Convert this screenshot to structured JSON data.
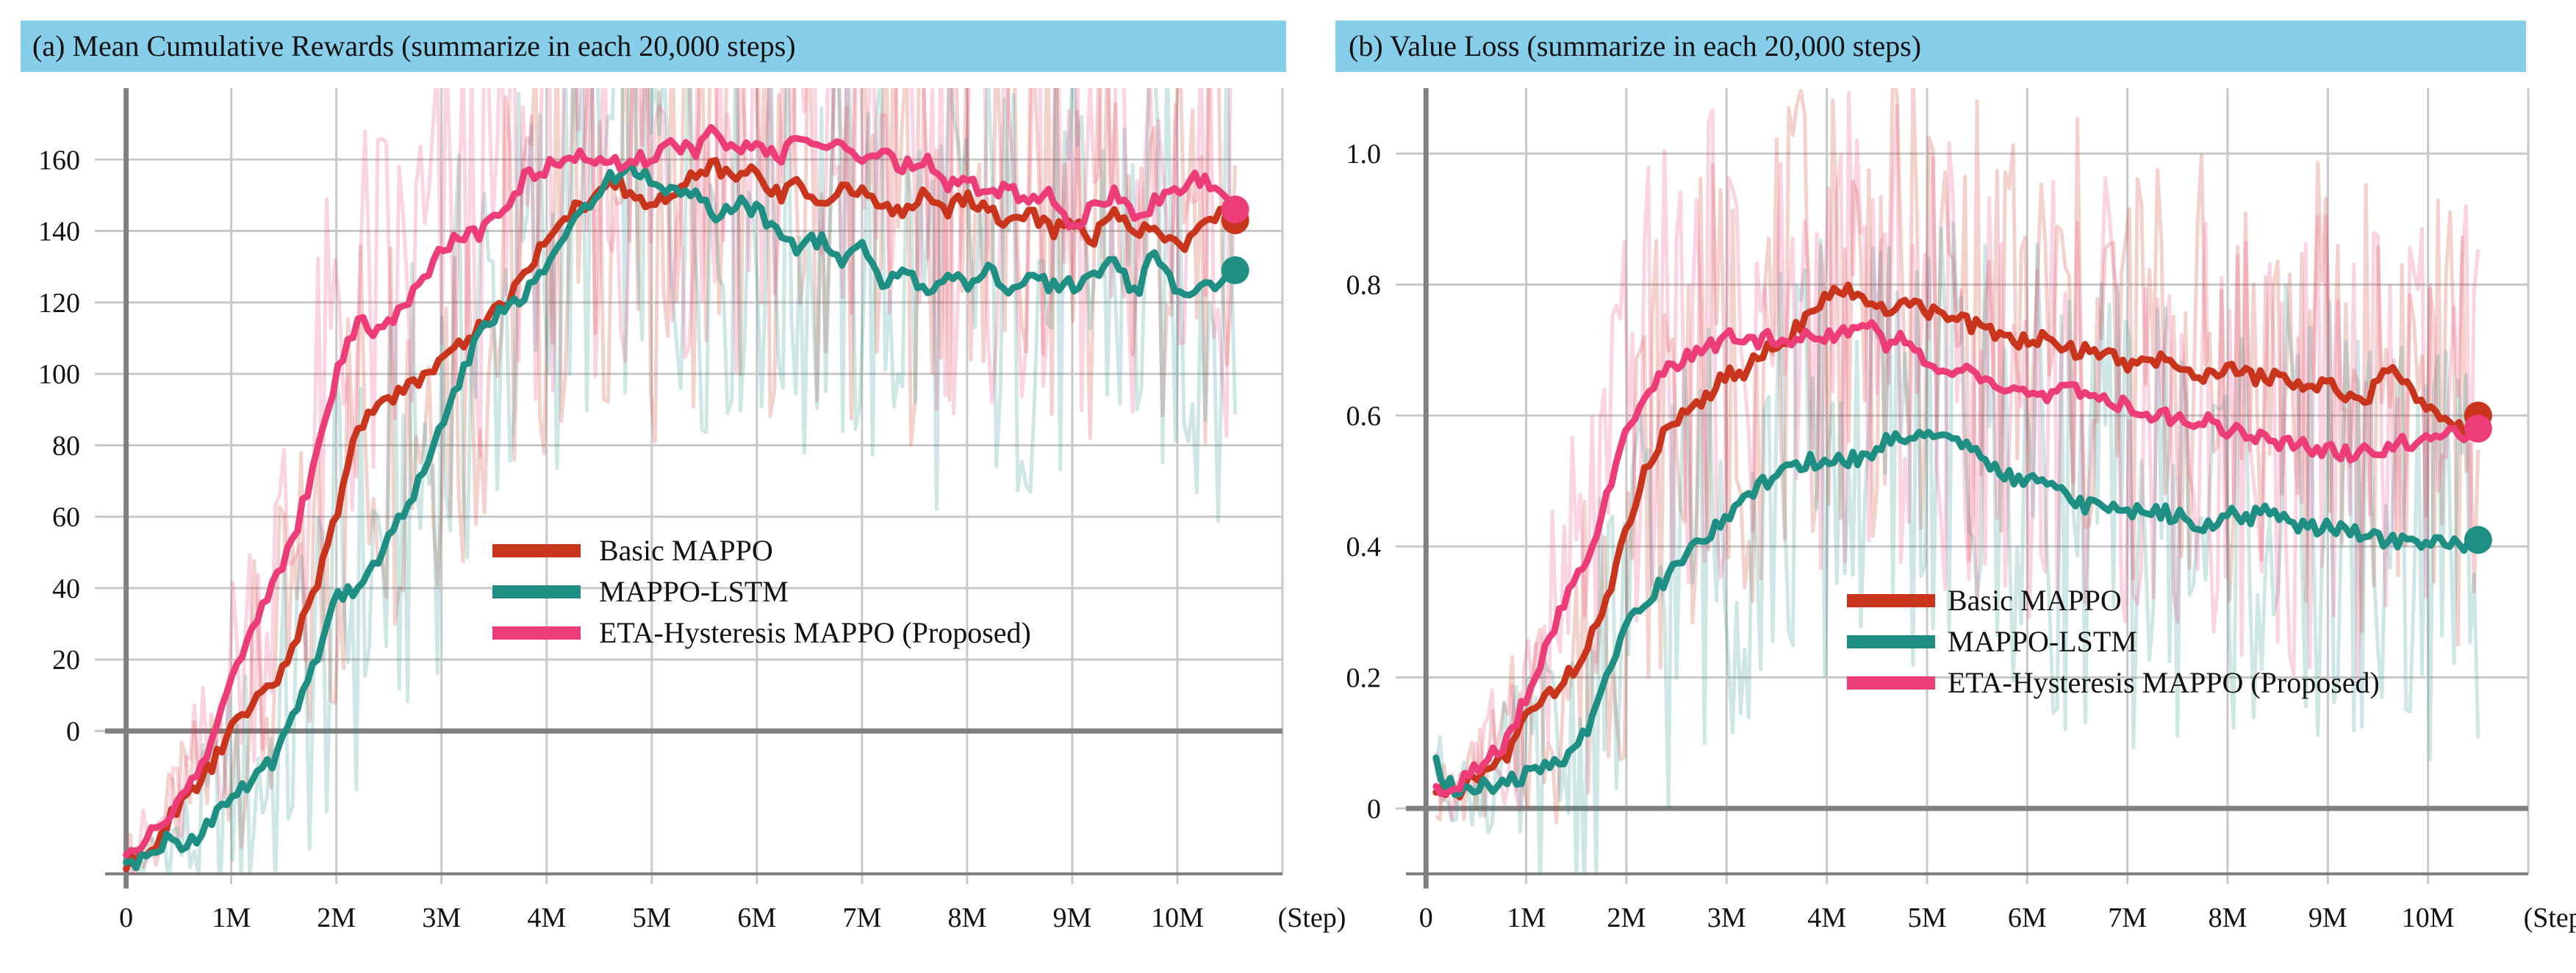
{
  "colors": {
    "title_bar": "#87ceeb",
    "grid": "#c8c8c8",
    "axis": "#808080",
    "basic_mappo": "#c8341c",
    "mappo_lstm": "#1f8f84",
    "eta_hysteresis": "#ec3d78"
  },
  "chart_data": [
    {
      "type": "line",
      "title": "(a) Mean Cumulative Rewards (summarize in each 20,000 steps)",
      "xlabel": "(Step)",
      "ylabel": "",
      "xlim": [
        -0.2,
        11.0
      ],
      "ylim": [
        -40,
        180
      ],
      "xticks": [
        0,
        1,
        2,
        3,
        4,
        5,
        6,
        7,
        8,
        9,
        10
      ],
      "xtick_labels": [
        "0",
        "1M",
        "2M",
        "3M",
        "4M",
        "5M",
        "6M",
        "7M",
        "8M",
        "9M",
        "10M"
      ],
      "yticks": [
        0,
        20,
        40,
        60,
        80,
        100,
        120,
        140,
        160
      ],
      "ytick_labels": [
        "0",
        "20",
        "40",
        "60",
        "80",
        "100",
        "120",
        "140",
        "160"
      ],
      "grid": true,
      "legend_position": "center",
      "series": [
        {
          "name": "Basic MAPPO",
          "color": "#c8341c",
          "x": [
            0,
            0.2,
            0.4,
            0.6,
            0.8,
            1.0,
            1.2,
            1.4,
            1.6,
            1.8,
            2.0,
            2.2,
            2.4,
            2.6,
            2.8,
            3.0,
            3.2,
            3.4,
            3.6,
            3.8,
            4.0,
            4.2,
            4.4,
            4.6,
            4.8,
            5.0,
            5.2,
            5.4,
            5.6,
            5.8,
            6.0,
            6.2,
            6.4,
            6.6,
            6.8,
            7.0,
            7.2,
            7.4,
            7.6,
            7.8,
            8.0,
            8.2,
            8.4,
            8.6,
            8.8,
            9.0,
            9.2,
            9.4,
            9.6,
            9.8,
            10.0,
            10.2,
            10.4,
            10.55
          ],
          "y": [
            -38,
            -35,
            -25,
            -18,
            -10,
            0,
            8,
            12,
            25,
            40,
            60,
            85,
            92,
            95,
            98,
            105,
            108,
            115,
            120,
            128,
            138,
            145,
            148,
            155,
            150,
            147,
            150,
            155,
            158,
            155,
            157,
            150,
            153,
            148,
            152,
            150,
            148,
            145,
            150,
            146,
            150,
            146,
            142,
            145,
            140,
            143,
            138,
            145,
            140,
            142,
            135,
            140,
            145,
            143
          ]
        },
        {
          "name": "MAPPO-LSTM",
          "color": "#1f8f84",
          "x": [
            0,
            0.2,
            0.4,
            0.6,
            0.8,
            1.0,
            1.2,
            1.4,
            1.6,
            1.8,
            2.0,
            2.2,
            2.4,
            2.6,
            2.8,
            3.0,
            3.2,
            3.4,
            3.6,
            3.8,
            4.0,
            4.2,
            4.4,
            4.6,
            4.8,
            5.0,
            5.2,
            5.4,
            5.6,
            5.8,
            6.0,
            6.2,
            6.4,
            6.6,
            6.8,
            7.0,
            7.2,
            7.4,
            7.6,
            7.8,
            8.0,
            8.2,
            8.4,
            8.6,
            8.8,
            9.0,
            9.2,
            9.4,
            9.6,
            9.8,
            10.0,
            10.2,
            10.4,
            10.55
          ],
          "y": [
            -38,
            -36,
            -30,
            -32,
            -25,
            -18,
            -15,
            -8,
            5,
            20,
            38,
            40,
            48,
            60,
            70,
            85,
            100,
            115,
            118,
            122,
            130,
            140,
            148,
            155,
            158,
            155,
            150,
            152,
            145,
            148,
            146,
            140,
            135,
            138,
            132,
            135,
            125,
            130,
            122,
            128,
            125,
            130,
            122,
            127,
            125,
            125,
            128,
            132,
            122,
            135,
            122,
            124,
            125,
            129
          ]
        },
        {
          "name": "ETA-Hysteresis MAPPO (Proposed)",
          "color": "#ec3d78",
          "x": [
            0,
            0.2,
            0.4,
            0.6,
            0.8,
            1.0,
            1.2,
            1.4,
            1.6,
            1.8,
            2.0,
            2.2,
            2.4,
            2.6,
            2.8,
            3.0,
            3.2,
            3.4,
            3.6,
            3.8,
            4.0,
            4.2,
            4.4,
            4.6,
            4.8,
            5.0,
            5.2,
            5.4,
            5.6,
            5.8,
            6.0,
            6.2,
            6.4,
            6.6,
            6.8,
            7.0,
            7.2,
            7.4,
            7.6,
            7.8,
            8.0,
            8.2,
            8.4,
            8.6,
            8.8,
            9.0,
            9.2,
            9.4,
            9.6,
            9.8,
            10.0,
            10.2,
            10.4,
            10.55
          ],
          "y": [
            -35,
            -30,
            -25,
            -15,
            -5,
            15,
            30,
            40,
            55,
            75,
            100,
            115,
            112,
            118,
            125,
            135,
            138,
            140,
            145,
            155,
            158,
            160,
            162,
            158,
            160,
            160,
            165,
            162,
            168,
            162,
            165,
            160,
            168,
            162,
            166,
            158,
            162,
            158,
            160,
            152,
            155,
            150,
            152,
            148,
            150,
            140,
            148,
            150,
            145,
            148,
            150,
            155,
            150,
            146
          ]
        }
      ]
    },
    {
      "type": "line",
      "title": "(b) Value Loss (summarize in each 20,000 steps)",
      "xlabel": "(Step)",
      "ylabel": "",
      "xlim": [
        -0.2,
        11.0
      ],
      "ylim": [
        -0.1,
        1.1
      ],
      "xticks": [
        0,
        1,
        2,
        3,
        4,
        5,
        6,
        7,
        8,
        9,
        10
      ],
      "xtick_labels": [
        "0",
        "1M",
        "2M",
        "3M",
        "4M",
        "5M",
        "6M",
        "7M",
        "8M",
        "9M",
        "10M"
      ],
      "yticks": [
        0,
        0.2,
        0.4,
        0.6,
        0.8,
        1.0
      ],
      "ytick_labels": [
        "0",
        "0.2",
        "0.4",
        "0.6",
        "0.8",
        "1.0"
      ],
      "grid": true,
      "legend_position": "center-right",
      "series": [
        {
          "name": "Basic MAPPO",
          "color": "#c8341c",
          "x": [
            0.1,
            0.2,
            0.3,
            0.5,
            0.8,
            1.0,
            1.2,
            1.4,
            1.6,
            1.8,
            2.0,
            2.2,
            2.4,
            2.6,
            2.8,
            3.0,
            3.2,
            3.4,
            3.6,
            3.8,
            4.0,
            4.2,
            4.4,
            4.6,
            4.8,
            5.0,
            5.2,
            5.4,
            5.6,
            5.8,
            6.0,
            6.2,
            6.4,
            6.6,
            6.8,
            7.0,
            7.2,
            7.4,
            7.6,
            7.8,
            8.0,
            8.2,
            8.4,
            8.6,
            8.8,
            9.0,
            9.2,
            9.4,
            9.6,
            9.8,
            10.0,
            10.2,
            10.4,
            10.5
          ],
          "y": [
            0.03,
            0.02,
            0.02,
            0.05,
            0.08,
            0.14,
            0.17,
            0.2,
            0.24,
            0.32,
            0.42,
            0.52,
            0.58,
            0.61,
            0.63,
            0.66,
            0.67,
            0.7,
            0.72,
            0.75,
            0.78,
            0.79,
            0.77,
            0.76,
            0.78,
            0.76,
            0.75,
            0.74,
            0.73,
            0.72,
            0.71,
            0.72,
            0.7,
            0.7,
            0.69,
            0.68,
            0.69,
            0.68,
            0.67,
            0.66,
            0.67,
            0.66,
            0.66,
            0.65,
            0.64,
            0.65,
            0.63,
            0.63,
            0.67,
            0.64,
            0.61,
            0.59,
            0.58,
            0.6
          ]
        },
        {
          "name": "MAPPO-LSTM",
          "color": "#1f8f84",
          "x": [
            0.1,
            0.2,
            0.3,
            0.5,
            0.8,
            1.0,
            1.2,
            1.4,
            1.6,
            1.8,
            2.0,
            2.2,
            2.4,
            2.6,
            2.8,
            3.0,
            3.2,
            3.4,
            3.6,
            3.8,
            4.0,
            4.2,
            4.4,
            4.6,
            4.8,
            5.0,
            5.2,
            5.4,
            5.6,
            5.8,
            6.0,
            6.2,
            6.4,
            6.6,
            6.8,
            7.0,
            7.2,
            7.4,
            7.6,
            7.8,
            8.0,
            8.2,
            8.4,
            8.6,
            8.8,
            9.0,
            9.2,
            9.4,
            9.6,
            9.8,
            10.0,
            10.2,
            10.4,
            10.5
          ],
          "y": [
            0.07,
            0.04,
            0.03,
            0.03,
            0.04,
            0.05,
            0.06,
            0.08,
            0.12,
            0.2,
            0.29,
            0.32,
            0.35,
            0.39,
            0.42,
            0.44,
            0.47,
            0.5,
            0.52,
            0.53,
            0.53,
            0.53,
            0.54,
            0.56,
            0.57,
            0.58,
            0.56,
            0.55,
            0.53,
            0.51,
            0.5,
            0.5,
            0.48,
            0.46,
            0.46,
            0.45,
            0.46,
            0.45,
            0.44,
            0.43,
            0.45,
            0.44,
            0.46,
            0.44,
            0.43,
            0.43,
            0.42,
            0.42,
            0.41,
            0.41,
            0.4,
            0.41,
            0.4,
            0.41
          ]
        },
        {
          "name": "ETA-Hysteresis MAPPO (Proposed)",
          "color": "#ec3d78",
          "x": [
            0.1,
            0.2,
            0.3,
            0.5,
            0.8,
            1.0,
            1.2,
            1.4,
            1.6,
            1.8,
            2.0,
            2.2,
            2.4,
            2.6,
            2.8,
            3.0,
            3.2,
            3.4,
            3.6,
            3.8,
            4.0,
            4.2,
            4.4,
            4.6,
            4.8,
            5.0,
            5.2,
            5.4,
            5.6,
            5.8,
            6.0,
            6.2,
            6.4,
            6.6,
            6.8,
            7.0,
            7.2,
            7.4,
            7.6,
            7.8,
            8.0,
            8.2,
            8.4,
            8.6,
            8.8,
            9.0,
            9.2,
            9.4,
            9.6,
            9.8,
            10.0,
            10.2,
            10.4,
            10.5
          ],
          "y": [
            0.04,
            0.02,
            0.03,
            0.06,
            0.1,
            0.17,
            0.25,
            0.32,
            0.38,
            0.47,
            0.57,
            0.63,
            0.67,
            0.69,
            0.7,
            0.72,
            0.71,
            0.72,
            0.71,
            0.73,
            0.72,
            0.73,
            0.74,
            0.71,
            0.72,
            0.68,
            0.66,
            0.67,
            0.65,
            0.64,
            0.64,
            0.62,
            0.65,
            0.63,
            0.62,
            0.62,
            0.6,
            0.6,
            0.59,
            0.59,
            0.58,
            0.57,
            0.56,
            0.56,
            0.55,
            0.55,
            0.54,
            0.55,
            0.55,
            0.56,
            0.56,
            0.57,
            0.57,
            0.58
          ]
        }
      ]
    }
  ]
}
